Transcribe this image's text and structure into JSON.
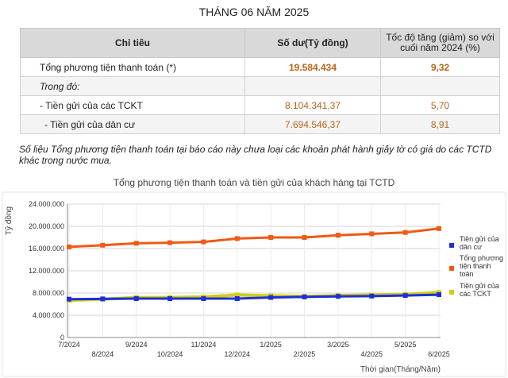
{
  "title": "THÁNG 06 NĂM 2025",
  "table": {
    "headers": [
      "Chỉ tiêu",
      "Số dư(Tỷ đồng)",
      "Tốc độ tăng (giảm) so với cuối năm 2024 (%)"
    ],
    "rows": [
      {
        "label": "Tổng phương tiện thanh toán (*)",
        "value": "19.584.434",
        "rate": "9,32"
      },
      {
        "label": "Trong đó:",
        "value": "",
        "rate": ""
      },
      {
        "label": "- Tiền gửi của các TCKT",
        "value": "8.104.341,37",
        "rate": "5,70"
      },
      {
        "label": "- Tiền gửi của dân cư",
        "value": "7.694.546,37",
        "rate": "8,91"
      }
    ]
  },
  "note": "Số liệu Tổng phương tiện thanh toán tại báo cáo này chưa loại các khoản phát hành giấy tờ có giá do các TCTD khác trong nước mua.",
  "chart_data": {
    "type": "line",
    "title": "Tổng phương tiện thanh toán và tiền gửi của khách hàng tại TCTD",
    "ylabel": "Tỷ đồng",
    "xlabel": "Thời gian(Tháng/Năm)",
    "ylim": [
      0,
      24000000
    ],
    "yticks": [
      "0",
      "4.000.000",
      "8.000.000",
      "12.000.000",
      "16.000.000",
      "20.000.000",
      "24.000.000"
    ],
    "categories": [
      "7/2024",
      "8/2024",
      "9/2024",
      "10/2024",
      "11/2024",
      "12/2024",
      "1/2025",
      "2/2025",
      "3/2025",
      "4/2025",
      "5/2025",
      "6/2025"
    ],
    "grid": true,
    "legend_position": "right",
    "series": [
      {
        "name": "Tiền gửi của dân cư",
        "color": "#1f2fd6",
        "values": [
          6900000,
          6950000,
          7000000,
          7000000,
          7000000,
          7000000,
          7200000,
          7300000,
          7400000,
          7450000,
          7550000,
          7700000
        ]
      },
      {
        "name": "Tổng phương tiện thanh toán",
        "color": "#f05a14",
        "values": [
          16300000,
          16600000,
          16950000,
          17050000,
          17200000,
          17800000,
          18000000,
          18000000,
          18400000,
          18650000,
          18900000,
          19600000
        ]
      },
      {
        "name": "Tiền gửi của các TCKT",
        "color": "#cfcc16",
        "values": [
          6700000,
          6900000,
          7200000,
          7200000,
          7300000,
          7650000,
          7500000,
          7400000,
          7550000,
          7650000,
          7750000,
          8100000
        ]
      }
    ]
  }
}
